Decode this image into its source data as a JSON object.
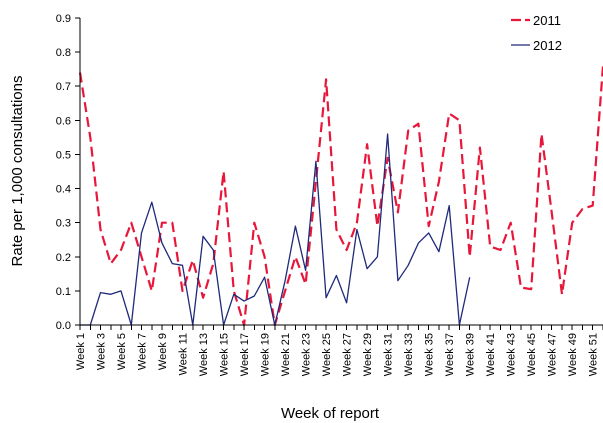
{
  "chart_data": {
    "type": "line",
    "title": "",
    "xlabel": "Week of report",
    "ylabel": "Rate per 1,000 consultations",
    "ylim": [
      0,
      0.9
    ],
    "yticks": [
      "0.0",
      "0.1",
      "0.2",
      "0.3",
      "0.4",
      "0.5",
      "0.6",
      "0.7",
      "0.8",
      "0.9"
    ],
    "xticklabels": [
      "Week 1",
      "Week 3",
      "Week 5",
      "Week 7",
      "Week 9",
      "Week 11",
      "Week 13",
      "Week 15",
      "Week 17",
      "Week 19",
      "Week 21",
      "Week 23",
      "Week 25",
      "Week 27",
      "Week 29",
      "Week 31",
      "Week 33",
      "Week 35",
      "Week 37",
      "Week 39",
      "Week 41",
      "Week 43",
      "Week 45",
      "Week 47",
      "Week 49",
      "Week 51"
    ],
    "x": [
      1,
      2,
      3,
      4,
      5,
      6,
      7,
      8,
      9,
      10,
      11,
      12,
      13,
      14,
      15,
      16,
      17,
      18,
      19,
      20,
      21,
      22,
      23,
      24,
      25,
      26,
      27,
      28,
      29,
      30,
      31,
      32,
      33,
      34,
      35,
      36,
      37,
      38,
      39,
      40,
      41,
      42,
      43,
      44,
      45,
      46,
      47,
      48,
      49,
      50,
      51,
      52
    ],
    "xlim": [
      1,
      52
    ],
    "grid": false,
    "legend": "top-right",
    "series": [
      {
        "name": "2011",
        "color": "#e8173a",
        "style": "dashed",
        "values": [
          0.74,
          0.55,
          0.28,
          0.18,
          0.22,
          0.3,
          0.2,
          0.1,
          0.3,
          0.3,
          0.1,
          0.19,
          0.08,
          0.18,
          0.45,
          0.1,
          0.0,
          0.3,
          0.2,
          0.0,
          0.1,
          0.2,
          0.12,
          0.42,
          0.72,
          0.28,
          0.22,
          0.3,
          0.53,
          0.29,
          0.49,
          0.33,
          0.57,
          0.59,
          0.29,
          0.42,
          0.62,
          0.6,
          0.2,
          0.52,
          0.23,
          0.22,
          0.3,
          0.11,
          0.105,
          0.56,
          0.33,
          0.09,
          0.3,
          0.34,
          0.35,
          0.76
        ]
      },
      {
        "name": "2012",
        "color": "#1f2a7a",
        "style": "solid",
        "values": [
          0.0,
          0.0,
          0.095,
          0.09,
          0.1,
          0.0,
          0.27,
          0.36,
          0.24,
          0.18,
          0.175,
          0.0,
          0.26,
          0.22,
          0.0,
          0.09,
          0.07,
          0.085,
          0.14,
          0.0,
          0.13,
          0.29,
          0.16,
          0.48,
          0.08,
          0.145,
          0.065,
          0.28,
          0.165,
          0.2,
          0.56,
          0.13,
          0.175,
          0.24,
          0.27,
          0.215,
          0.35,
          0.0,
          0.14,
          null,
          null,
          null,
          null,
          null,
          null,
          null,
          null,
          null,
          null,
          null,
          null,
          null
        ]
      }
    ]
  }
}
